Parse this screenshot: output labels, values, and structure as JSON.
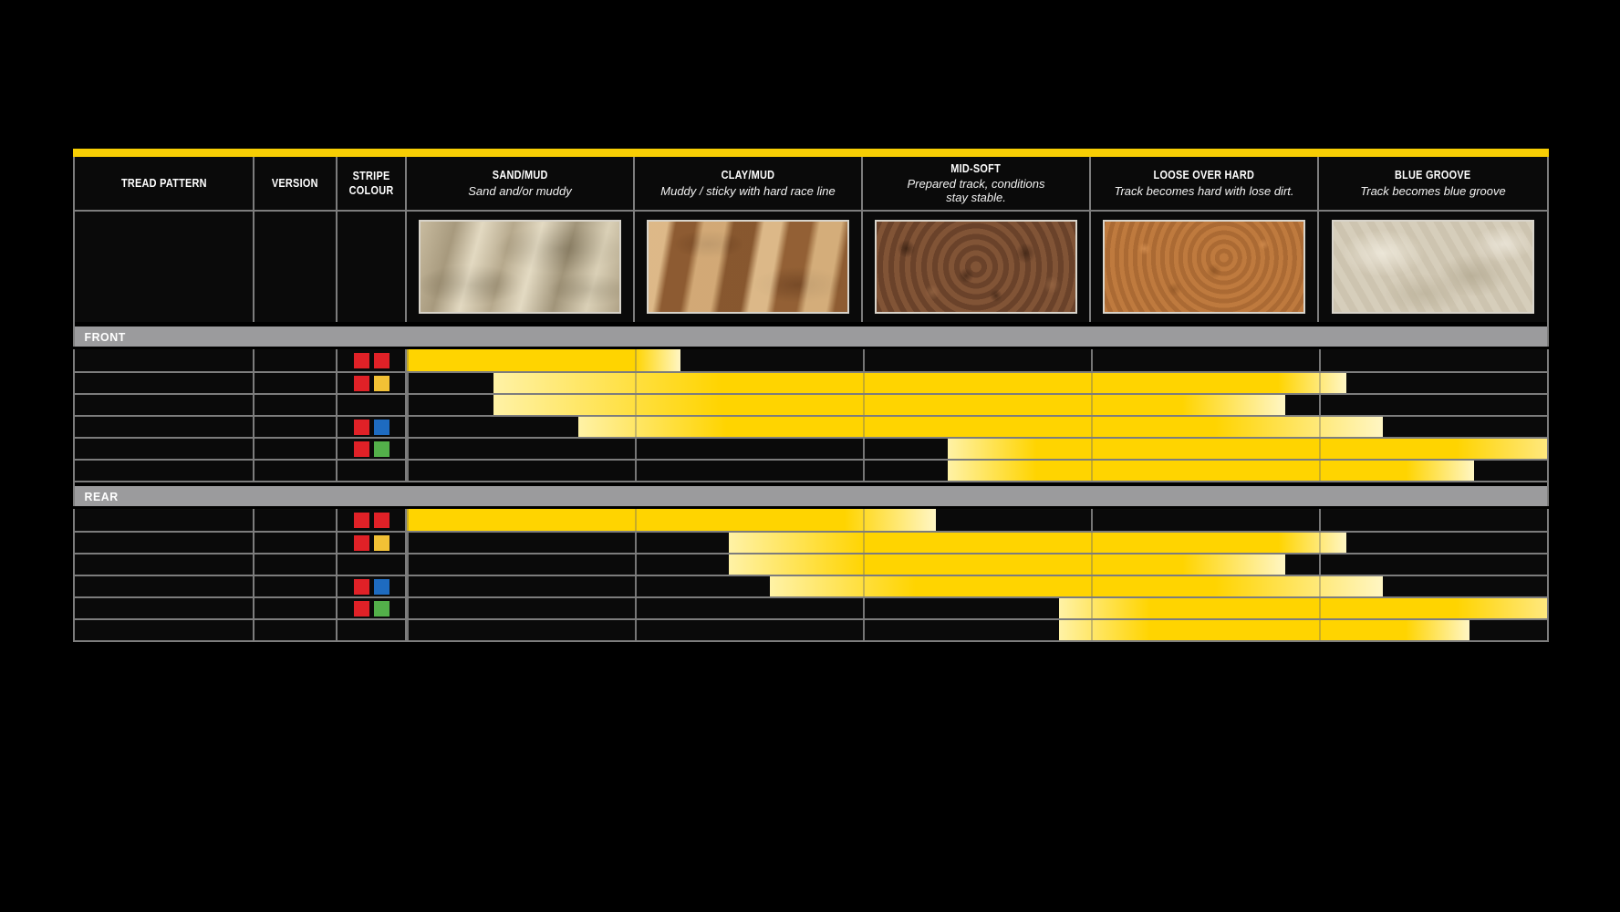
{
  "table": {
    "left_columns": [
      {
        "id": "tread_pattern",
        "label": "TREAD PATTERN"
      },
      {
        "id": "version",
        "label": "VERSION"
      },
      {
        "id": "stripe_colour",
        "label": "STRIPE\nCOLOUR"
      }
    ],
    "conditions": [
      {
        "id": "sand_mud",
        "title": "SAND/MUD",
        "subtitle": "Sand and/or muddy",
        "swatch": "sand-texture"
      },
      {
        "id": "clay_mud",
        "title": "CLAY/MUD",
        "subtitle": "Muddy / sticky with hard race line",
        "swatch": "clay-texture"
      },
      {
        "id": "mid_soft",
        "title": "MID-SOFT",
        "subtitle": "Prepared track, conditions\nstay stable.",
        "swatch": "midsoft-texture"
      },
      {
        "id": "loose_over_hard",
        "title": "LOOSE OVER HARD",
        "subtitle": "Track becomes hard with lose dirt.",
        "swatch": "loose-texture"
      },
      {
        "id": "blue_groove",
        "title": "BLUE GROOVE",
        "subtitle": "Track becomes blue groove",
        "swatch": "bluegroove-texture"
      }
    ],
    "sections": [
      {
        "label": "FRONT",
        "rows": [
          {
            "stripes": [
              "red",
              "red"
            ],
            "bar": {
              "start": 0.0,
              "solid_from": 0.0,
              "solid_until": 1.0,
              "end": 1.2
            }
          },
          {
            "stripes": [
              "red",
              "yellow"
            ],
            "bar": {
              "start": 0.38,
              "solid_from": 1.38,
              "solid_until": 3.82,
              "end": 4.12
            }
          },
          {
            "stripes": [],
            "bar": {
              "start": 0.38,
              "solid_from": 1.38,
              "solid_until": 3.4,
              "end": 3.85
            }
          },
          {
            "stripes": [
              "red",
              "blue"
            ],
            "bar": {
              "start": 0.75,
              "solid_from": 1.4,
              "solid_until": 3.54,
              "end": 4.28
            }
          },
          {
            "stripes": [
              "red",
              "green"
            ],
            "bar": {
              "start": 2.37,
              "solid_from": 2.76,
              "solid_until": 4.6,
              "end": 5.0,
              "end_style": "edge"
            }
          },
          {
            "stripes": [],
            "bar": {
              "start": 2.37,
              "solid_from": 2.76,
              "solid_until": 4.38,
              "end": 4.68
            }
          }
        ]
      },
      {
        "label": "REAR",
        "rows": [
          {
            "stripes": [
              "red",
              "red"
            ],
            "bar": {
              "start": 0.0,
              "solid_from": 0.0,
              "solid_until": 1.92,
              "end": 2.32
            }
          },
          {
            "stripes": [
              "red",
              "yellow"
            ],
            "bar": {
              "start": 1.41,
              "solid_from": 2.01,
              "solid_until": 3.82,
              "end": 4.12
            }
          },
          {
            "stripes": [],
            "bar": {
              "start": 1.41,
              "solid_from": 2.01,
              "solid_until": 3.4,
              "end": 3.85
            }
          },
          {
            "stripes": [
              "red",
              "blue"
            ],
            "bar": {
              "start": 1.59,
              "solid_from": 2.23,
              "solid_until": 3.54,
              "end": 4.28
            }
          },
          {
            "stripes": [
              "red",
              "green"
            ],
            "bar": {
              "start": 2.86,
              "solid_from": 3.26,
              "solid_until": 4.6,
              "end": 5.0,
              "end_style": "edge"
            }
          },
          {
            "stripes": [],
            "bar": {
              "start": 2.86,
              "solid_from": 3.26,
              "solid_until": 4.38,
              "end": 4.66
            }
          }
        ]
      }
    ],
    "colors": {
      "accent": "#f7ce04",
      "band": "#9b9b9d",
      "grid": "#7d7d7d",
      "bar_solid": "#ffd400",
      "bar_fade_in": "#fff2a6",
      "bar_fade_out": "#fff6c4",
      "bar_edge": "#ffe87e",
      "stripe_red": "#e02127",
      "stripe_yellow": "#f2c135",
      "stripe_blue": "#1e6bc0",
      "stripe_green": "#53b04a"
    }
  },
  "chart_data": {
    "type": "table",
    "title": "Tyre application chart: track conditions per tread pattern stripe colour (FRONT / REAR)",
    "categories": [
      "SAND/MUD",
      "CLAY/MUD",
      "MID-SOFT",
      "LOOSE OVER HARD",
      "BLUE GROOVE"
    ],
    "category_subtitles": [
      "Sand and/or muddy",
      "Muddy / sticky with hard race line",
      "Prepared track, conditions stay stable.",
      "Track becomes hard with lose dirt.",
      "Track becomes blue groove"
    ],
    "axis_units": "condition-column units: 0 = left edge of SAND/MUD, 5 = right edge of BLUE GROOVE; bars fade in/out between solid range and range ends",
    "legend_position": "none",
    "series": [
      {
        "section": "FRONT",
        "stripe_colour": "red/red",
        "range": [
          0.0,
          1.2
        ],
        "solid_range": [
          0.0,
          1.0
        ]
      },
      {
        "section": "FRONT",
        "stripe_colour": "red/yellow",
        "range": [
          0.38,
          4.12
        ],
        "solid_range": [
          1.38,
          3.82
        ]
      },
      {
        "section": "FRONT",
        "stripe_colour": "",
        "range": [
          0.38,
          3.85
        ],
        "solid_range": [
          1.38,
          3.4
        ]
      },
      {
        "section": "FRONT",
        "stripe_colour": "red/blue",
        "range": [
          0.75,
          4.28
        ],
        "solid_range": [
          1.4,
          3.54
        ]
      },
      {
        "section": "FRONT",
        "stripe_colour": "red/green",
        "range": [
          2.37,
          5.0
        ],
        "solid_range": [
          2.76,
          4.6
        ]
      },
      {
        "section": "FRONT",
        "stripe_colour": "",
        "range": [
          2.37,
          4.68
        ],
        "solid_range": [
          2.76,
          4.38
        ]
      },
      {
        "section": "REAR",
        "stripe_colour": "red/red",
        "range": [
          0.0,
          2.32
        ],
        "solid_range": [
          0.0,
          1.92
        ]
      },
      {
        "section": "REAR",
        "stripe_colour": "red/yellow",
        "range": [
          1.41,
          4.12
        ],
        "solid_range": [
          2.01,
          3.82
        ]
      },
      {
        "section": "REAR",
        "stripe_colour": "",
        "range": [
          1.41,
          3.85
        ],
        "solid_range": [
          2.01,
          3.4
        ]
      },
      {
        "section": "REAR",
        "stripe_colour": "red/blue",
        "range": [
          1.59,
          4.28
        ],
        "solid_range": [
          2.23,
          3.54
        ]
      },
      {
        "section": "REAR",
        "stripe_colour": "red/green",
        "range": [
          2.86,
          5.0
        ],
        "solid_range": [
          3.26,
          4.6
        ]
      },
      {
        "section": "REAR",
        "stripe_colour": "",
        "range": [
          2.86,
          4.66
        ],
        "solid_range": [
          3.26,
          4.38
        ]
      }
    ]
  }
}
